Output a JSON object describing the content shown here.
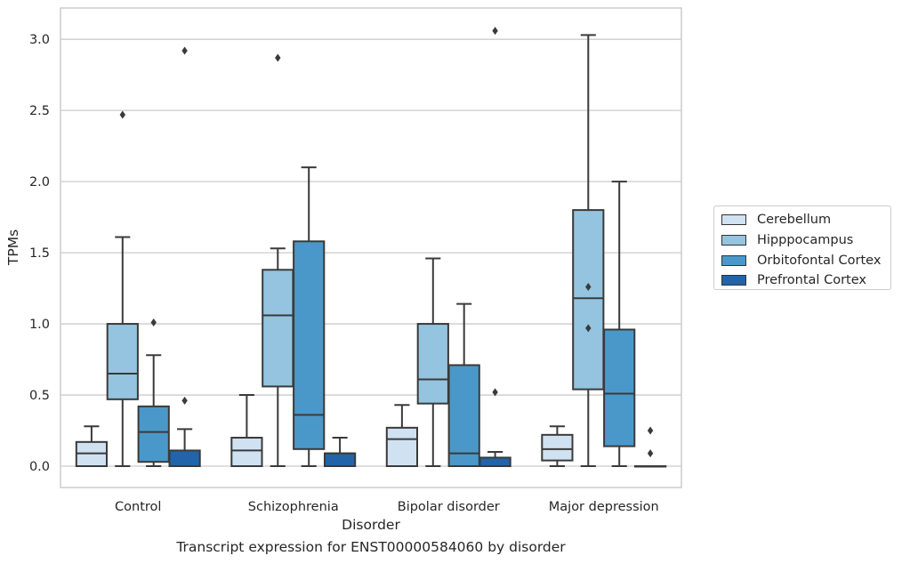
{
  "caption": "Transcript expression for ENST00000584060 by disorder",
  "chart_data": {
    "type": "box",
    "xlabel": "Disorder",
    "ylabel": "TPMs",
    "ylim": [
      -0.15,
      3.22
    ],
    "yticks": [
      "0.0",
      "0.5",
      "1.0",
      "1.5",
      "2.0",
      "2.5",
      "3.0"
    ],
    "grid": "horizontal",
    "legend_position": "right",
    "categories": [
      "Control",
      "Schizophrenia",
      "Bipolar disorder",
      "Major depression"
    ],
    "series": [
      {
        "name": "Cerebellum",
        "color": "#d0e1f2",
        "boxes": [
          {
            "whislo": 0.0,
            "q1": 0.0,
            "med": 0.09,
            "q3": 0.17,
            "whishi": 0.28,
            "fliers": []
          },
          {
            "whislo": 0.0,
            "q1": 0.0,
            "med": 0.11,
            "q3": 0.2,
            "whishi": 0.5,
            "fliers": []
          },
          {
            "whislo": 0.0,
            "q1": 0.0,
            "med": 0.19,
            "q3": 0.27,
            "whishi": 0.43,
            "fliers": []
          },
          {
            "whislo": 0.0,
            "q1": 0.04,
            "med": 0.12,
            "q3": 0.22,
            "whishi": 0.28,
            "fliers": []
          }
        ]
      },
      {
        "name": "Hipppocampus",
        "color": "#94c4df",
        "boxes": [
          {
            "whislo": 0.0,
            "q1": 0.47,
            "med": 0.65,
            "q3": 1.0,
            "whishi": 1.61,
            "fliers": [
              2.47
            ]
          },
          {
            "whislo": 0.0,
            "q1": 0.56,
            "med": 1.06,
            "q3": 1.38,
            "whishi": 1.53,
            "fliers": [
              2.87
            ]
          },
          {
            "whislo": 0.0,
            "q1": 0.44,
            "med": 0.61,
            "q3": 1.0,
            "whishi": 1.46,
            "fliers": []
          },
          {
            "whislo": 0.0,
            "q1": 0.54,
            "med": 1.18,
            "q3": 1.8,
            "whishi": 3.03,
            "fliers": [
              1.26,
              0.97
            ]
          }
        ]
      },
      {
        "name": "Orbitofontal Cortex",
        "color": "#4a98c9",
        "boxes": [
          {
            "whislo": 0.0,
            "q1": 0.03,
            "med": 0.24,
            "q3": 0.42,
            "whishi": 0.78,
            "fliers": [
              1.01
            ]
          },
          {
            "whislo": 0.0,
            "q1": 0.12,
            "med": 0.36,
            "q3": 1.58,
            "whishi": 2.1,
            "fliers": []
          },
          {
            "whislo": 0.0,
            "q1": 0.0,
            "med": 0.09,
            "q3": 0.71,
            "whishi": 1.14,
            "fliers": []
          },
          {
            "whislo": 0.0,
            "q1": 0.14,
            "med": 0.51,
            "q3": 0.96,
            "whishi": 2.0,
            "fliers": []
          }
        ]
      },
      {
        "name": "Prefrontal Cortex",
        "color": "#2264a9",
        "boxes": [
          {
            "whislo": 0.0,
            "q1": 0.0,
            "med": 0.0,
            "q3": 0.11,
            "whishi": 0.26,
            "fliers": [
              2.92,
              0.46
            ]
          },
          {
            "whislo": 0.0,
            "q1": 0.0,
            "med": 0.09,
            "q3": 0.09,
            "whishi": 0.2,
            "fliers": []
          },
          {
            "whislo": 0.0,
            "q1": 0.0,
            "med": 0.0,
            "q3": 0.06,
            "whishi": 0.1,
            "fliers": [
              3.06,
              0.52
            ]
          },
          {
            "whislo": 0.0,
            "q1": 0.0,
            "med": 0.0,
            "q3": 0.0,
            "whishi": 0.0,
            "fliers": [
              0.25,
              0.09
            ]
          }
        ]
      }
    ]
  }
}
